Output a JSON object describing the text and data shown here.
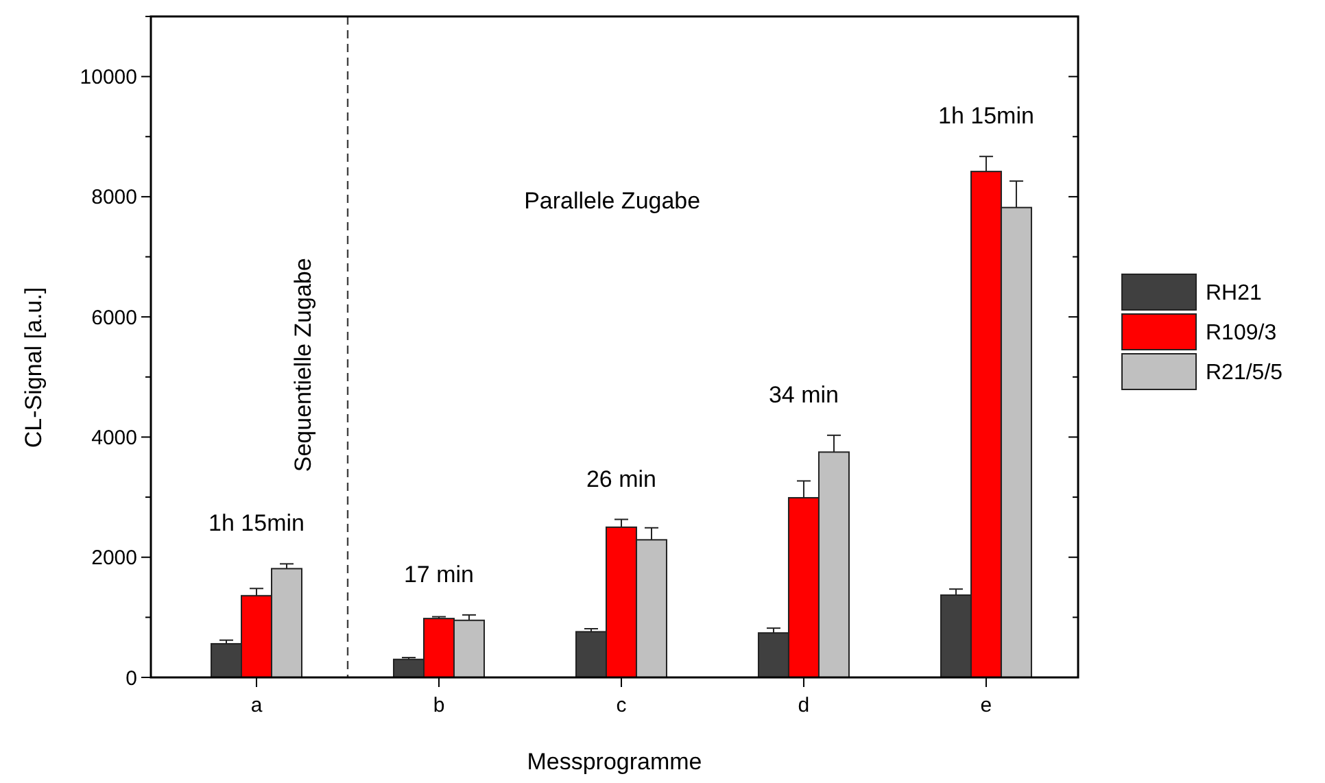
{
  "chart_data": {
    "type": "bar",
    "xlabel": "Messprogramme",
    "ylabel": "CL-Signal [a.u.]",
    "categories": [
      "a",
      "b",
      "c",
      "d",
      "e"
    ],
    "series": [
      {
        "name": "RH21",
        "color": "#404040",
        "values": [
          560,
          300,
          760,
          740,
          1370
        ],
        "errors": [
          60,
          30,
          50,
          80,
          100
        ]
      },
      {
        "name": "R109/3",
        "color": "#ff0000",
        "values": [
          1360,
          980,
          2500,
          2990,
          8420
        ],
        "errors": [
          120,
          30,
          130,
          280,
          250
        ]
      },
      {
        "name": "R21/5/5",
        "color": "#c0c0c0",
        "values": [
          1810,
          950,
          2290,
          3750,
          7820
        ],
        "errors": [
          80,
          90,
          200,
          280,
          440
        ]
      }
    ],
    "ylim": [
      0,
      11000
    ],
    "yticks": [
      0,
      {
        "value": 1000,
        "label": null
      },
      2000,
      {
        "value": 3000,
        "label": null
      },
      4000,
      {
        "value": 5000,
        "label": null
      },
      6000,
      {
        "value": 7000,
        "label": null
      },
      8000,
      {
        "value": 9000,
        "label": null
      },
      10000,
      {
        "value": 11000,
        "label": null
      }
    ],
    "annotations": [
      "Sequentielle Zugabe",
      "Parallele Zugabe",
      "1h 15min",
      "17 min",
      "26 min",
      "34 min",
      "1h 15min"
    ],
    "legend": "right",
    "grid": false
  }
}
